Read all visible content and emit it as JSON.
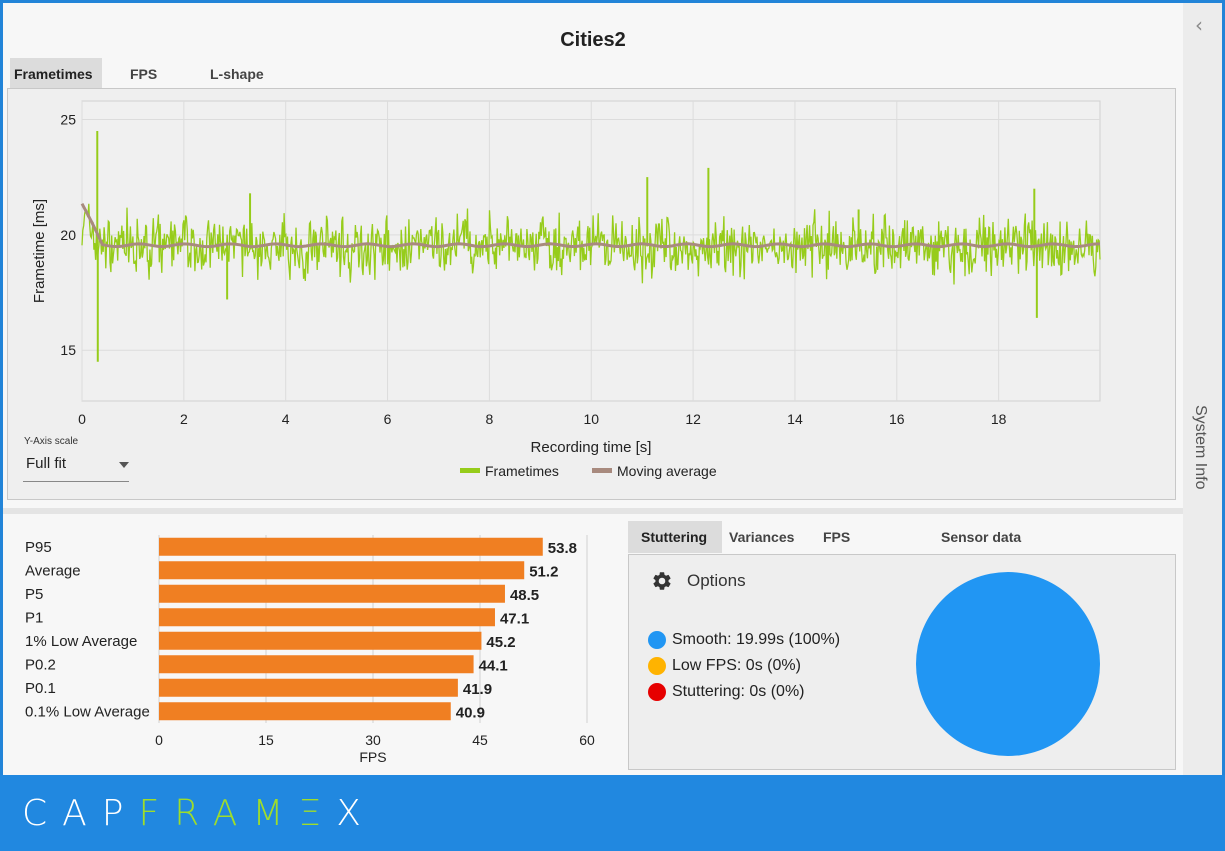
{
  "app": {
    "title": "Cities2"
  },
  "main_tabs": [
    {
      "label": "Frametimes",
      "active": true
    },
    {
      "label": "FPS",
      "active": false
    },
    {
      "label": "L-shape",
      "active": false
    }
  ],
  "frametime_chart": {
    "type": "line",
    "xlabel": "Recording time [s]",
    "ylabel": "Frametime [ms]",
    "xlim": [
      0,
      19.99
    ],
    "ylim": [
      12.8,
      25.8
    ],
    "xticks": [
      "0",
      "2",
      "4",
      "6",
      "8",
      "10",
      "12",
      "14",
      "16",
      "18"
    ],
    "yticks": [
      "15",
      "20",
      "25"
    ],
    "grid": true,
    "legend_position": "bottom-center",
    "series": [
      {
        "name": "Frametimes",
        "color": "#96cc1a",
        "baseline": 19.5,
        "noise": 1.1
      },
      {
        "name": "Moving average",
        "color": "#a88a7e",
        "baseline": 19.55
      }
    ],
    "spikes": [
      {
        "x": 0.3,
        "y": 24.5
      },
      {
        "x": 0.31,
        "y": 14.5
      },
      {
        "x": 2.85,
        "y": 17.2
      },
      {
        "x": 3.3,
        "y": 21.8
      },
      {
        "x": 11.1,
        "y": 22.5
      },
      {
        "x": 12.3,
        "y": 22.9
      },
      {
        "x": 15.25,
        "y": 21.1
      },
      {
        "x": 18.7,
        "y": 22.0
      },
      {
        "x": 18.75,
        "y": 16.4
      }
    ]
  },
  "y_axis_scale": {
    "caption": "Y-Axis scale",
    "value": "Full fit"
  },
  "stats_chart": {
    "type": "bar",
    "orientation": "horizontal",
    "categories": [
      "P95",
      "Average",
      "P5",
      "P1",
      "1% Low Average",
      "P0.2",
      "P0.1",
      "0.1% Low Average"
    ],
    "values": [
      53.8,
      51.2,
      48.5,
      47.1,
      45.2,
      44.1,
      41.9,
      40.9
    ],
    "value_labels": [
      "53.8",
      "51.2",
      "48.5",
      "47.1",
      "45.2",
      "44.1",
      "41.9",
      "40.9"
    ],
    "xlim": [
      0,
      60
    ],
    "xticks": [
      "0",
      "15",
      "30",
      "45",
      "60"
    ],
    "xlabel": "FPS",
    "color": "#f07f22"
  },
  "analysis_tabs": [
    {
      "label": "Stuttering",
      "active": true
    },
    {
      "label": "Variances",
      "active": false
    },
    {
      "label": "FPS thresholds",
      "active": false
    },
    {
      "label": "Sensor data",
      "active": false
    }
  ],
  "stuttering": {
    "options_label": "Options",
    "options_icon": "gear-icon",
    "items": [
      {
        "label": "Smooth:  19.99s (100%)",
        "color": "#2196f3",
        "share": 1.0
      },
      {
        "label": "Low FPS:  0s (0%)",
        "color": "#ffb300",
        "share": 0.0
      },
      {
        "label": "Stuttering:  0s (0%)",
        "color": "#e60000",
        "share": 0.0
      }
    ]
  },
  "sidebar": {
    "label": "System Info",
    "collapse_icon": "chevron-left-icon"
  },
  "footer": {
    "logo_white_1": "CAP",
    "logo_green": "FRAM",
    "logo_e": "Ξ",
    "logo_white_2": "X"
  }
}
